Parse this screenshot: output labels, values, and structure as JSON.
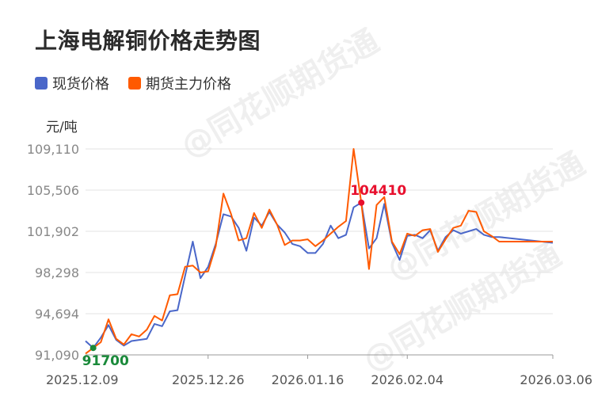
{
  "chart_data": {
    "type": "line",
    "title": "上海电解铜价格走势图",
    "unit_label": "元/吨",
    "y_ticks": [
      "109,110",
      "105,506",
      "101,902",
      "98,298",
      "94,694",
      "91,090"
    ],
    "y_tick_values": [
      109110,
      105506,
      101902,
      98298,
      94694,
      91090
    ],
    "ylim": [
      91090,
      109110
    ],
    "x_tick_labels": [
      "2025.12.09",
      "2025.12.26",
      "2026.01.16",
      "2026.02.04",
      "2026.03.06"
    ],
    "x_tick_indices": [
      0,
      16,
      29,
      42,
      61
    ],
    "n_points": 62,
    "series": [
      {
        "name": "现货价格",
        "color": "#4a67c9",
        "values": [
          92300,
          91700,
          92600,
          93700,
          92400,
          91900,
          92300,
          92400,
          92500,
          93800,
          93600,
          94900,
          95000,
          98000,
          101000,
          97800,
          98800,
          100800,
          103400,
          103200,
          102200,
          100200,
          103100,
          102400,
          103600,
          102500,
          101800,
          100800,
          100600,
          100000,
          100000,
          100800,
          102400,
          101300,
          101600,
          104000,
          104410,
          100400,
          101300,
          104300,
          100900,
          99400,
          101500,
          101600,
          101300,
          102000,
          100200,
          101400,
          102000,
          101700,
          101900,
          102100,
          101600,
          101400,
          101400,
          100900
        ],
        "x": [
          0,
          1,
          2,
          3,
          4,
          5,
          6,
          7,
          8,
          9,
          10,
          11,
          12,
          13,
          14,
          15,
          16,
          17,
          18,
          19,
          20,
          21,
          22,
          23,
          24,
          25,
          26,
          27,
          28,
          29,
          30,
          31,
          32,
          33,
          34,
          35,
          36,
          37,
          38,
          39,
          40,
          41,
          42,
          43,
          44,
          45,
          46,
          47,
          48,
          49,
          50,
          51,
          52,
          53,
          54,
          61
        ]
      },
      {
        "name": "期货主力价格",
        "color": "#ff5a00",
        "values": [
          91200,
          91700,
          92200,
          94200,
          92500,
          92000,
          92900,
          92700,
          93300,
          94500,
          94100,
          96300,
          96400,
          98800,
          98900,
          98300,
          98400,
          100600,
          105200,
          103400,
          101100,
          101300,
          103500,
          102200,
          103800,
          102500,
          100700,
          101100,
          101100,
          101200,
          100600,
          101100,
          101700,
          102300,
          102800,
          109110,
          104400,
          98600,
          104200,
          104900,
          101000,
          99900,
          101700,
          101500,
          102000,
          102100,
          100100,
          101200,
          102200,
          102400,
          103700,
          103600,
          101900,
          101500,
          101000,
          101000
        ],
        "x": [
          0,
          1,
          2,
          3,
          4,
          5,
          6,
          7,
          8,
          9,
          10,
          11,
          12,
          13,
          14,
          15,
          16,
          17,
          18,
          19,
          20,
          21,
          22,
          23,
          24,
          25,
          26,
          27,
          28,
          29,
          30,
          31,
          32,
          33,
          34,
          35,
          36,
          37,
          38,
          39,
          40,
          41,
          42,
          43,
          44,
          45,
          46,
          47,
          48,
          49,
          50,
          51,
          52,
          53,
          54,
          61
        ]
      }
    ],
    "annotations": [
      {
        "label": "104410",
        "series": 0,
        "index": 36,
        "color": "#e8102e"
      },
      {
        "label": "91700",
        "series": 0,
        "index": 1,
        "color": "#1a8a3a"
      }
    ],
    "grid": true,
    "legend_position": "top-left",
    "watermark": "@同花顺期货通"
  }
}
